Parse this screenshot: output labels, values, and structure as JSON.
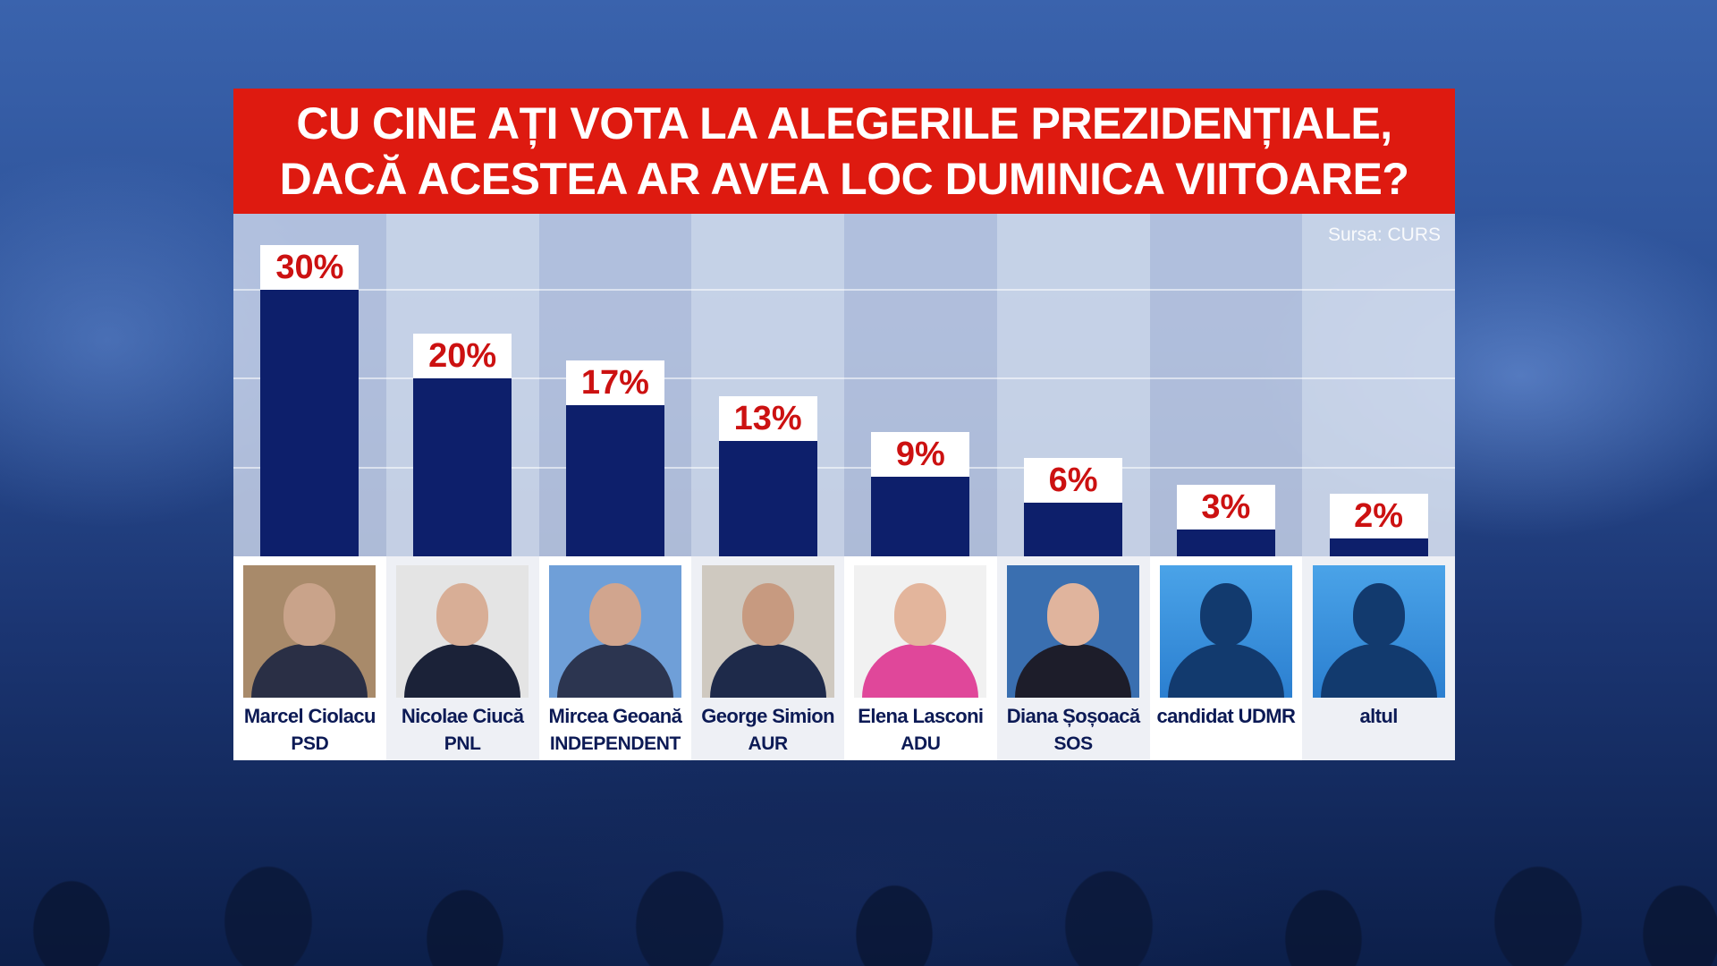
{
  "title_lines": [
    "CU CINE AȚI VOTA LA ALEGERILE PREZIDENȚIALE,",
    "DACĂ ACESTEA AR AVEA LOC DUMINICA VIITOARE?"
  ],
  "source": "Sursa: CURS",
  "colors": {
    "title_bg": "#de1a10",
    "bar": "#0d1f6b",
    "value_text": "#cc1111"
  },
  "chart_data": {
    "type": "bar",
    "title": "CU CINE AȚI VOTA LA ALEGERILE PREZIDENȚIALE, DACĂ ACESTEA AR AVEA LOC DUMINICA VIITOARE?",
    "categories": [
      "Marcel Ciolacu",
      "Nicolae Ciucă",
      "Mircea Geoană",
      "George Simion",
      "Elena Lasconi",
      "Diana Șoșoacă",
      "candidat UDMR",
      "altul"
    ],
    "values": [
      30,
      20,
      17,
      13,
      9,
      6,
      3,
      2
    ],
    "value_labels": [
      "30%",
      "20%",
      "17%",
      "13%",
      "9%",
      "6%",
      "3%",
      "2%"
    ],
    "parties": [
      "PSD",
      "PNL",
      "INDEPENDENT",
      "AUR",
      "ADU",
      "SOS",
      "",
      ""
    ],
    "ylim": [
      0,
      35
    ],
    "grid": true
  },
  "candidates": [
    {
      "name": "Marcel Ciolacu",
      "party": "PSD",
      "photo": "portrait",
      "skin": "#c9a38a",
      "suit": "#2a2f45",
      "bg": "#a88a6a"
    },
    {
      "name": "Nicolae Ciucă",
      "party": "PNL",
      "photo": "portrait",
      "skin": "#d8ae96",
      "suit": "#1b2238",
      "bg": "#e4e4e4"
    },
    {
      "name": "Mircea Geoană",
      "party": "INDEPENDENT",
      "photo": "portrait",
      "skin": "#d1a58e",
      "suit": "#2c3550",
      "bg": "#6f9fd8"
    },
    {
      "name": "George Simion",
      "party": "AUR",
      "photo": "portrait",
      "skin": "#c79a80",
      "suit": "#1e2a4a",
      "bg": "#cfc9c0"
    },
    {
      "name": "Elena Lasconi",
      "party": "ADU",
      "photo": "portrait",
      "skin": "#e3b59c",
      "suit": "#e0479a",
      "bg": "#f1f1f1"
    },
    {
      "name": "Diana Șoșoacă",
      "party": "SOS",
      "photo": "portrait",
      "skin": "#e0b49d",
      "suit": "#1d1d2a",
      "bg": "#3a6fb0"
    },
    {
      "name": "candidat UDMR",
      "party": "",
      "photo": "silhouette"
    },
    {
      "name": "altul",
      "party": "",
      "photo": "silhouette"
    }
  ]
}
